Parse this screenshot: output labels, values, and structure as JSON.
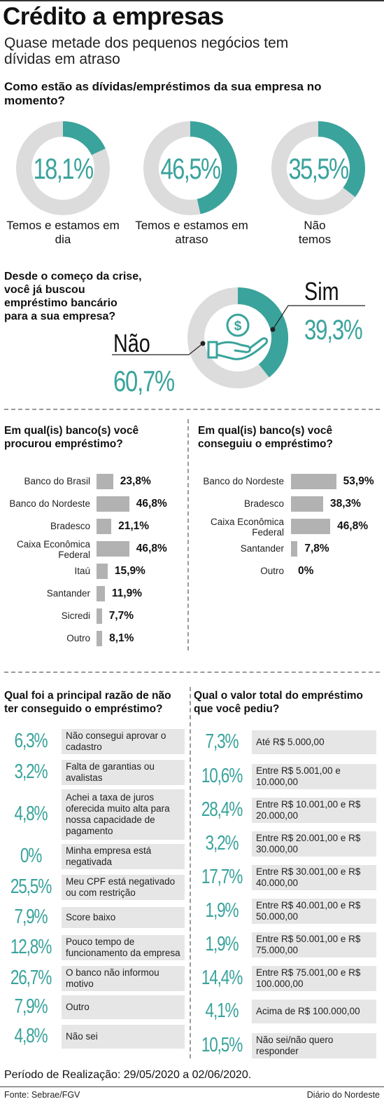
{
  "header": {
    "title": "Crédito a empresas",
    "subtitle": "Quase metade dos pequenos negócios tem dívidas em atraso"
  },
  "colors": {
    "accent": "#3aa39c",
    "track": "#dcdcdc",
    "bar": "#b2b2b2",
    "box": "#e6e6e6"
  },
  "icons": {
    "crisis_donut_center": "hand-coin-icon"
  },
  "section_debts": {
    "question": "Como estão as dívidas/empréstimos da sua empresa no momento?"
  },
  "section_crisis": {
    "question": "Desde o começo da crise, você já buscou empréstimo bancário para a sua empresa?"
  },
  "section_banks_sought": {
    "question": "Em qual(is) banco(s) você procurou empréstimo?"
  },
  "section_banks_got": {
    "question": "Em qual(is) banco(s) você conseguiu o empréstimo?"
  },
  "section_reasons": {
    "question": "Qual foi a principal razão de não ter conseguido o empréstimo?"
  },
  "section_values": {
    "question": "Qual o valor total do empréstimo que você pediu?"
  },
  "chart_data": [
    {
      "type": "pie",
      "question": "Como estão as dívidas/empréstimos da sua empresa no momento?",
      "items": [
        {
          "label": "Temos e estamos em dia",
          "value": 18.1,
          "display": "18,1%"
        },
        {
          "label": "Temos e estamos em atraso",
          "value": 46.5,
          "display": "46,5%"
        },
        {
          "label": "Não temos",
          "value": 35.5,
          "display": "35,5%"
        }
      ]
    },
    {
      "type": "pie",
      "question": "Desde o começo da crise, você já buscou empréstimo bancário para a sua empresa?",
      "slices": [
        {
          "label": "Sim",
          "value": 39.3,
          "display": "39,3%"
        },
        {
          "label": "Não",
          "value": 60.7,
          "display": "60,7%"
        }
      ]
    },
    {
      "type": "bar",
      "question": "Em qual(is) banco(s) você procurou empréstimo?",
      "categories": [
        "Banco do Brasil",
        "Banco do Nordeste",
        "Bradesco",
        "Caixa Econômica Federal",
        "Itaú",
        "Santander",
        "Sicredi",
        "Outro"
      ],
      "values": [
        23.8,
        46.8,
        21.1,
        46.8,
        15.9,
        11.9,
        7.7,
        8.1
      ],
      "displays": [
        "23,8%",
        "46,8%",
        "21,1%",
        "46,8%",
        "15,9%",
        "11,9%",
        "7,7%",
        "8,1%"
      ]
    },
    {
      "type": "bar",
      "question": "Em qual(is) banco(s) você conseguiu o empréstimo?",
      "categories": [
        "Banco do Nordeste",
        "Bradesco",
        "Caixa Econômica Federal",
        "Santander",
        "Outro"
      ],
      "values": [
        53.9,
        38.3,
        46.8,
        7.8,
        0
      ],
      "displays": [
        "53,9%",
        "38,3%",
        "46,8%",
        "7,8%",
        "0%"
      ]
    },
    {
      "type": "table",
      "question": "Qual foi a principal razão de não ter conseguido o empréstimo?",
      "rows": [
        {
          "value": 6.3,
          "display": "6,3%",
          "label": "Não consegui aprovar o cadastro"
        },
        {
          "value": 3.2,
          "display": "3,2%",
          "label": "Falta de garantias ou avalistas"
        },
        {
          "value": 4.8,
          "display": "4,8%",
          "label": "Achei a taxa de juros oferecida muito alta para nossa capacidade de pagamento"
        },
        {
          "value": 0,
          "display": "0%",
          "label": "Minha empresa está negativada"
        },
        {
          "value": 25.5,
          "display": "25,5%",
          "label": "Meu CPF está negativado ou com restrição"
        },
        {
          "value": 7.9,
          "display": "7,9%",
          "label": "Score baixo"
        },
        {
          "value": 12.8,
          "display": "12,8%",
          "label": "Pouco tempo de funcionamento da empresa"
        },
        {
          "value": 26.7,
          "display": "26,7%",
          "label": "O banco não informou motivo"
        },
        {
          "value": 7.9,
          "display": "7,9%",
          "label": "Outro"
        },
        {
          "value": 4.8,
          "display": "4,8%",
          "label": "Não sei"
        }
      ]
    },
    {
      "type": "table",
      "question": "Qual o valor total do empréstimo que você pediu?",
      "rows": [
        {
          "value": 7.3,
          "display": "7,3%",
          "label": "Até R$ 5.000,00"
        },
        {
          "value": 10.6,
          "display": "10,6%",
          "label": "Entre R$ 5.001,00 e 10.000,00"
        },
        {
          "value": 28.4,
          "display": "28,4%",
          "label": "Entre R$ 10.001,00 e R$ 20.000,00"
        },
        {
          "value": 3.2,
          "display": "3,2%",
          "label": "Entre R$ 20.001,00 e R$ 30.000,00"
        },
        {
          "value": 17.7,
          "display": "17,7%",
          "label": "Entre R$ 30.001,00 e R$ 40.000,00"
        },
        {
          "value": 1.9,
          "display": "1,9%",
          "label": "Entre R$ 40.001,00 e R$ 50.000,00"
        },
        {
          "value": 1.9,
          "display": "1,9%",
          "label": "Entre R$ 50.001,00 e R$ 75.000,00"
        },
        {
          "value": 14.4,
          "display": "14,4%",
          "label": "Entre R$ 75.001,00 e R$ 100.000,00"
        },
        {
          "value": 4.1,
          "display": "4,1%",
          "label": "Acima de R$ 100.000,00"
        },
        {
          "value": 10.5,
          "display": "10,5%",
          "label": "Não sei/não quero responder"
        }
      ]
    }
  ],
  "footer": {
    "period": "Período de Realização: 29/05/2020 a 02/06/2020.",
    "source": "Fonte: Sebrae/FGV",
    "brand": "Diário do Nordeste"
  }
}
